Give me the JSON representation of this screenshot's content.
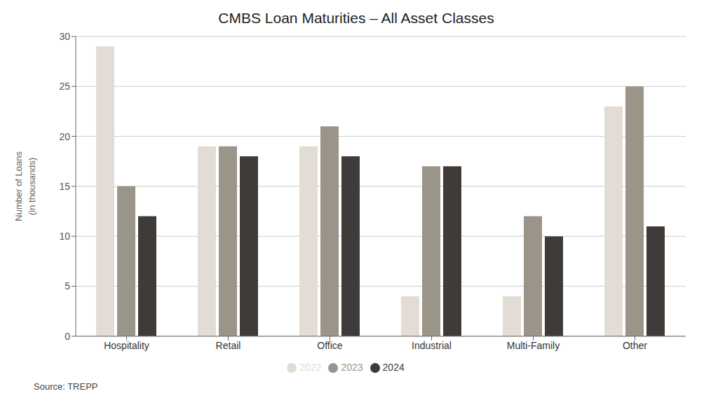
{
  "chart_data": {
    "type": "bar",
    "title": "CMBS Loan Maturities – All Asset Classes",
    "categories": [
      "Hospitality",
      "Retail",
      "Office",
      "Industrial",
      "Multi-Family",
      "Other"
    ],
    "series": [
      {
        "name": "2022",
        "color": "#e2dcd4",
        "values": [
          29,
          19,
          19,
          4,
          4,
          23
        ]
      },
      {
        "name": "2023",
        "color": "#9b9488",
        "values": [
          15,
          19,
          21,
          17,
          12,
          25
        ]
      },
      {
        "name": "2024",
        "color": "#3f3b38",
        "values": [
          12,
          18,
          18,
          17,
          10,
          11
        ]
      }
    ],
    "ylabel": "Number of Loans\n(in thousands)",
    "ylim": [
      0,
      30
    ],
    "yticks": [
      0,
      5,
      10,
      15,
      20,
      25,
      30
    ],
    "grid": true,
    "legend": "bottom",
    "annotations": [
      "Source: TREPP"
    ]
  }
}
